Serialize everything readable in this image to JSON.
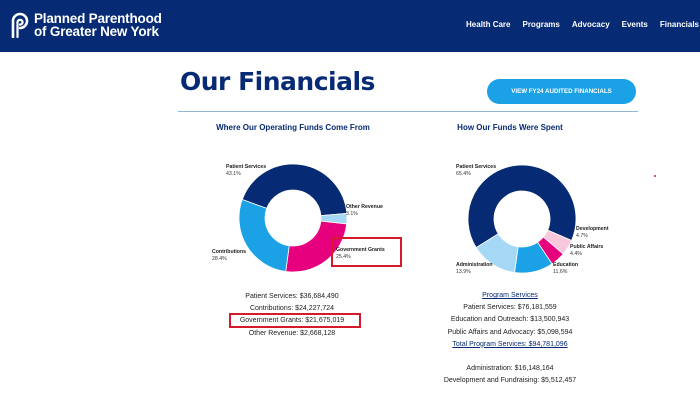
{
  "brand": {
    "line1": "Planned Parenthood",
    "line2": "of Greater New York",
    "logo_icon": "pp-logo-icon"
  },
  "nav": {
    "items": [
      "Health Care",
      "Programs",
      "Advocacy",
      "Events",
      "Financials"
    ]
  },
  "page": {
    "title": "Our Financials",
    "audit_button": "VIEW FY24 AUDITED FINANCIALS"
  },
  "colors": {
    "navy": "#062a73",
    "blue": "#1aa1e6",
    "magenta": "#e6007e",
    "light_blue": "#a4d8f4",
    "pink": "#f7c8dc",
    "highlight": "#d51a2c"
  },
  "funds_sources": {
    "title": "Where Our Operating Funds Come From",
    "segments": [
      {
        "label": "Patient Services",
        "pct": "43.1%",
        "value": 43.1,
        "color": "#062a73"
      },
      {
        "label": "Other Revenue",
        "pct": "3.1%",
        "value": 3.1,
        "color": "#a4d8f4"
      },
      {
        "label": "Government Grants",
        "pct": "25.4%",
        "value": 25.4,
        "color": "#e6007e"
      },
      {
        "label": "Contributions",
        "pct": "28.4%",
        "value": 28.4,
        "color": "#1aa1e6"
      }
    ],
    "lines": [
      "Patient Services: $36,684,490",
      "Contributions: $24,227,724",
      "Government Grants: $21,675,019",
      "Other Revenue: $2,668,128"
    ]
  },
  "funds_spent": {
    "title": "How Our Funds Were Spent",
    "segments": [
      {
        "label": "Patient Services",
        "pct": "65.4%",
        "value": 65.4,
        "color": "#062a73"
      },
      {
        "label": "Development",
        "pct": "4.7%",
        "value": 4.7,
        "color": "#f7c8dc"
      },
      {
        "label": "Public Affairs",
        "pct": "4.4%",
        "value": 4.4,
        "color": "#e6007e"
      },
      {
        "label": "Education",
        "pct": "11.6%",
        "value": 11.6,
        "color": "#1aa1e6"
      },
      {
        "label": "Administration",
        "pct": "13.9%",
        "value": 13.9,
        "color": "#a4d8f4"
      }
    ],
    "program_header": "Program Services",
    "lines": [
      "Patient Services: $76,181,559",
      "Education and Outreach: $13,500,943",
      "Public Affairs and Advocacy: $5,098,594",
      "Total Program Services: $94,781,096",
      "Administration: $16,148,164",
      "Development and Fundraising: $5,512,457"
    ]
  }
}
